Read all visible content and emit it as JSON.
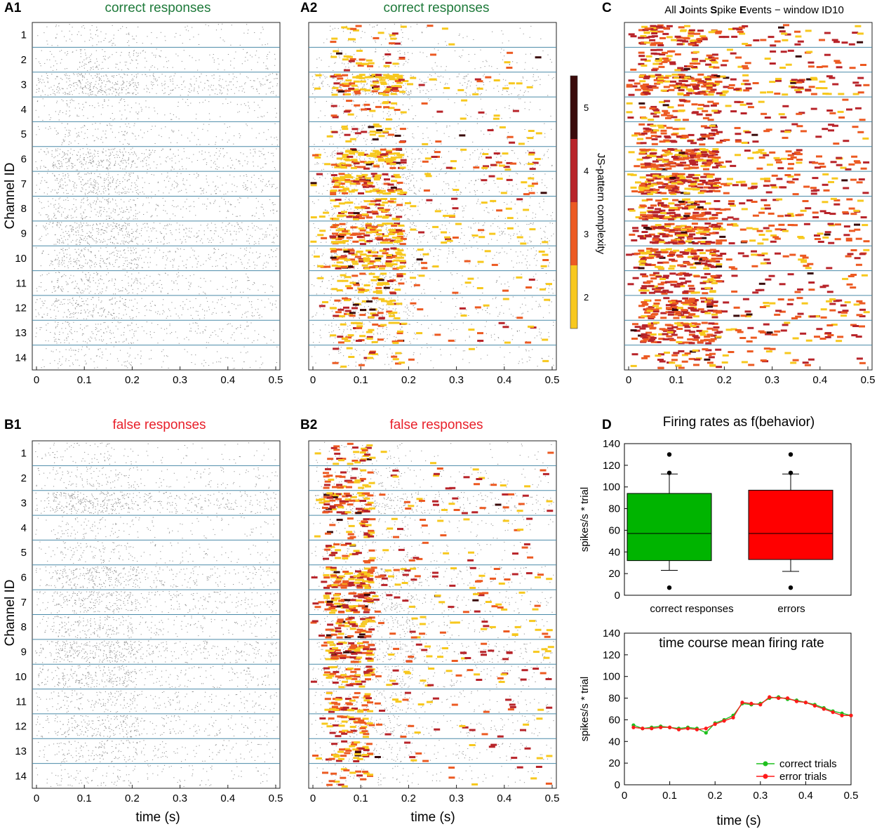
{
  "colors": {
    "correct_green": "#1e7a3a",
    "false_red": "#e8202a",
    "sep_line": "#4a8aa8",
    "spike_gray": "#6a6a6a",
    "cmap": [
      "#f7c81e",
      "#ec5a22",
      "#b8242a",
      "#3a0a0a"
    ],
    "box_green": "#00b400",
    "box_red": "#ff0000",
    "line_green": "#1fc01f",
    "line_red": "#ff1a1a"
  },
  "panels": {
    "A1": {
      "label": "A1",
      "title": "correct responses"
    },
    "A2": {
      "label": "A2",
      "title": "correct responses"
    },
    "B1": {
      "label": "B1",
      "title": "false responses"
    },
    "B2": {
      "label": "B2",
      "title": "false responses"
    },
    "C": {
      "label": "C"
    },
    "D": {
      "label": "D",
      "title": "Firing rates as f(behavior)"
    }
  },
  "panelC_title": {
    "p1": "All ",
    "b1": "J",
    "p2": "oints ",
    "b2": "S",
    "p3": "pike ",
    "b3": "E",
    "p4": "vents − window ID10"
  },
  "channel_axis_label": "Channel ID",
  "time_axis_label": "time (s)",
  "channels": [
    "1",
    "2",
    "3",
    "4",
    "5",
    "6",
    "7",
    "8",
    "9",
    "10",
    "11",
    "12",
    "13",
    "14"
  ],
  "time_ticks": [
    "0",
    "0.1",
    "0.2",
    "0.3",
    "0.4",
    "0.5"
  ],
  "colorbar": {
    "label": "JS-pattern complexity",
    "ticks": [
      "2",
      "3",
      "4",
      "5"
    ]
  },
  "chart_data": [
    {
      "type": "box",
      "title": "Firing rates as f(behavior)",
      "ylabel": "spikes/s * trial",
      "ylim": [
        0,
        140
      ],
      "yticks": [
        "0",
        "20",
        "40",
        "60",
        "80",
        "100",
        "120",
        "140"
      ],
      "categories": [
        "correct responses",
        "errors"
      ],
      "boxes": [
        {
          "name": "correct responses",
          "q1": 32,
          "median": 57,
          "q3": 94,
          "whisker_low": 23,
          "whisker_high": 112,
          "outliers": [
            7,
            113,
            130
          ]
        },
        {
          "name": "errors",
          "q1": 33,
          "median": 57,
          "q3": 97,
          "whisker_low": 22,
          "whisker_high": 112,
          "outliers": [
            7,
            113,
            130
          ]
        }
      ]
    },
    {
      "type": "line",
      "title": "time course mean firing rate",
      "xlabel": "time (s)",
      "ylabel": "spikes/s * trial",
      "xlim": [
        0,
        0.5
      ],
      "ylim": [
        0,
        140
      ],
      "xticks": [
        "0",
        "0.1",
        "0.2",
        "0.3",
        "0.4",
        "0.5"
      ],
      "yticks": [
        "0",
        "20",
        "40",
        "60",
        "80",
        "100",
        "120",
        "140"
      ],
      "x": [
        0.02,
        0.04,
        0.06,
        0.08,
        0.1,
        0.12,
        0.14,
        0.16,
        0.18,
        0.2,
        0.22,
        0.24,
        0.26,
        0.28,
        0.3,
        0.32,
        0.34,
        0.36,
        0.38,
        0.4,
        0.42,
        0.44,
        0.46,
        0.48,
        0.5
      ],
      "series": [
        {
          "name": "correct trials",
          "values": [
            55,
            52,
            53,
            54,
            53,
            52,
            53,
            52,
            48,
            57,
            60,
            64,
            75,
            74,
            75,
            80,
            81,
            79,
            78,
            76,
            74,
            71,
            68,
            66,
            64
          ]
        },
        {
          "name": "error trials",
          "values": [
            53,
            52,
            52,
            53,
            53,
            51,
            52,
            51,
            52,
            56,
            59,
            62,
            76,
            75,
            74,
            81,
            80,
            80,
            77,
            76,
            73,
            70,
            67,
            64,
            64
          ]
        }
      ]
    }
  ]
}
